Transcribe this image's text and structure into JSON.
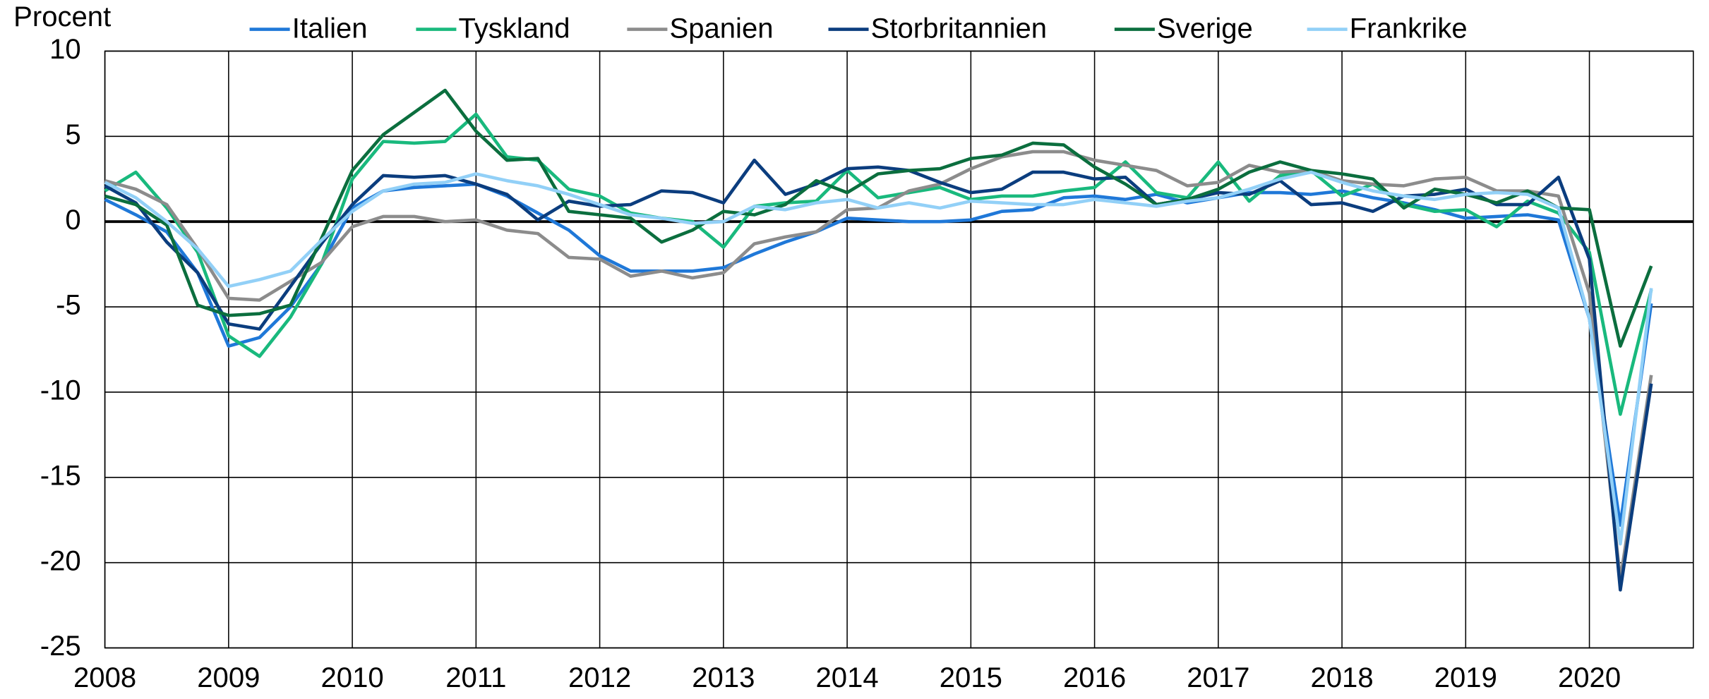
{
  "chart_data": {
    "type": "line",
    "y_label": "Procent",
    "x": [
      2008,
      2008.25,
      2008.5,
      2008.75,
      2009,
      2009.25,
      2009.5,
      2009.75,
      2010,
      2010.25,
      2010.5,
      2010.75,
      2011,
      2011.25,
      2011.5,
      2011.75,
      2012,
      2012.25,
      2012.5,
      2012.75,
      2013,
      2013.25,
      2013.5,
      2013.75,
      2014,
      2014.25,
      2014.5,
      2014.75,
      2015,
      2015.25,
      2015.5,
      2015.75,
      2016,
      2016.25,
      2016.5,
      2016.75,
      2017,
      2017.25,
      2017.5,
      2017.75,
      2018,
      2018.25,
      2018.5,
      2018.75,
      2019,
      2019.25,
      2019.5,
      2019.75,
      2020,
      2020.25,
      2020.5
    ],
    "series": [
      {
        "name": "Italien",
        "color": "#1f78d8",
        "values": [
          1.3,
          0.4,
          -0.6,
          -3.0,
          -7.3,
          -6.8,
          -5.0,
          -2.5,
          0.8,
          1.8,
          2.0,
          2.1,
          2.2,
          1.5,
          0.5,
          -0.5,
          -2.0,
          -2.9,
          -2.9,
          -2.9,
          -2.7,
          -1.9,
          -1.2,
          -0.6,
          0.2,
          0.1,
          0.0,
          0.0,
          0.1,
          0.6,
          0.7,
          1.4,
          1.5,
          1.3,
          1.6,
          1.1,
          1.4,
          1.7,
          1.7,
          1.6,
          1.8,
          1.4,
          1.1,
          0.7,
          0.2,
          0.3,
          0.4,
          0.1,
          -5.7,
          -17.8,
          -4.8
        ]
      },
      {
        "name": "Tyskland",
        "color": "#19b97d",
        "values": [
          1.8,
          2.9,
          0.8,
          -1.8,
          -6.7,
          -7.9,
          -5.6,
          -2.5,
          2.5,
          4.7,
          4.6,
          4.7,
          6.3,
          3.8,
          3.6,
          1.9,
          1.5,
          0.5,
          0.2,
          0.0,
          -1.5,
          0.9,
          1.1,
          1.2,
          3.0,
          1.4,
          1.7,
          2.0,
          1.3,
          1.5,
          1.5,
          1.8,
          2.0,
          3.5,
          1.7,
          1.4,
          3.5,
          1.2,
          2.7,
          3.0,
          1.5,
          2.2,
          1.0,
          0.6,
          0.7,
          -0.3,
          1.2,
          0.5,
          -1.8,
          -11.3,
          -4.0
        ]
      },
      {
        "name": "Spanien",
        "color": "#8c8c8c",
        "values": [
          2.4,
          1.9,
          1.0,
          -1.6,
          -4.5,
          -4.6,
          -3.5,
          -2.4,
          -0.3,
          0.3,
          0.3,
          0.0,
          0.1,
          -0.5,
          -0.7,
          -2.1,
          -2.2,
          -3.2,
          -2.9,
          -3.3,
          -3.0,
          -1.3,
          -0.9,
          -0.6,
          0.7,
          0.8,
          1.8,
          2.2,
          3.1,
          3.8,
          4.1,
          4.1,
          3.6,
          3.3,
          3.0,
          2.1,
          2.3,
          3.3,
          2.9,
          3.0,
          2.4,
          2.2,
          2.1,
          2.5,
          2.6,
          1.8,
          1.8,
          1.5,
          -4.2,
          -21.0,
          -9.0
        ]
      },
      {
        "name": "Storbritannien",
        "color": "#0b3d7e",
        "values": [
          2.1,
          1.1,
          -1.2,
          -3.0,
          -6.0,
          -6.3,
          -3.8,
          -1.3,
          1.0,
          2.7,
          2.6,
          2.7,
          2.2,
          1.6,
          0.1,
          1.2,
          0.9,
          1.0,
          1.8,
          1.7,
          1.1,
          3.6,
          1.6,
          2.2,
          3.1,
          3.2,
          3.0,
          2.3,
          1.7,
          1.9,
          2.9,
          2.9,
          2.5,
          2.6,
          1.0,
          1.3,
          1.7,
          1.6,
          2.4,
          1.0,
          1.1,
          0.6,
          1.5,
          1.6,
          1.9,
          1.0,
          1.0,
          2.6,
          -2.2,
          -21.6,
          -9.5
        ]
      },
      {
        "name": "Sverige",
        "color": "#0b6e3e",
        "values": [
          1.5,
          1.0,
          -0.2,
          -4.9,
          -5.5,
          -5.4,
          -4.9,
          -1.0,
          3.0,
          5.1,
          6.4,
          7.7,
          5.3,
          3.6,
          3.7,
          0.6,
          0.4,
          0.2,
          -1.2,
          -0.5,
          0.6,
          0.4,
          1.0,
          2.4,
          1.7,
          2.8,
          3.0,
          3.1,
          3.7,
          3.9,
          4.6,
          4.5,
          3.2,
          2.2,
          1.0,
          1.3,
          1.9,
          2.9,
          3.5,
          3.0,
          2.8,
          2.5,
          0.8,
          1.9,
          1.6,
          1.1,
          1.8,
          0.8,
          0.7,
          -7.3,
          -2.6
        ]
      },
      {
        "name": "Frankrike",
        "color": "#92d0f7",
        "values": [
          2.3,
          1.4,
          0.0,
          -1.6,
          -3.8,
          -3.4,
          -2.9,
          -1.1,
          0.6,
          1.8,
          2.2,
          2.3,
          2.8,
          2.4,
          2.1,
          1.6,
          1.0,
          0.4,
          0.2,
          -0.1,
          0.0,
          0.9,
          0.7,
          1.1,
          1.3,
          0.8,
          1.1,
          0.8,
          1.2,
          1.1,
          1.0,
          1.0,
          1.3,
          1.1,
          0.9,
          1.2,
          1.4,
          1.9,
          2.5,
          2.9,
          2.3,
          1.8,
          1.5,
          1.3,
          1.6,
          1.7,
          1.6,
          0.8,
          -5.7,
          -18.9,
          -3.9
        ]
      }
    ],
    "xlim": [
      2008,
      2020.84
    ],
    "xticks": [
      2008,
      2009,
      2010,
      2011,
      2012,
      2013,
      2014,
      2015,
      2016,
      2017,
      2018,
      2019,
      2020
    ],
    "ylim": [
      -25,
      10
    ],
    "yticks": [
      -25,
      -20,
      -15,
      -10,
      -5,
      0,
      5,
      10
    ],
    "grid": true,
    "legend": "top"
  }
}
